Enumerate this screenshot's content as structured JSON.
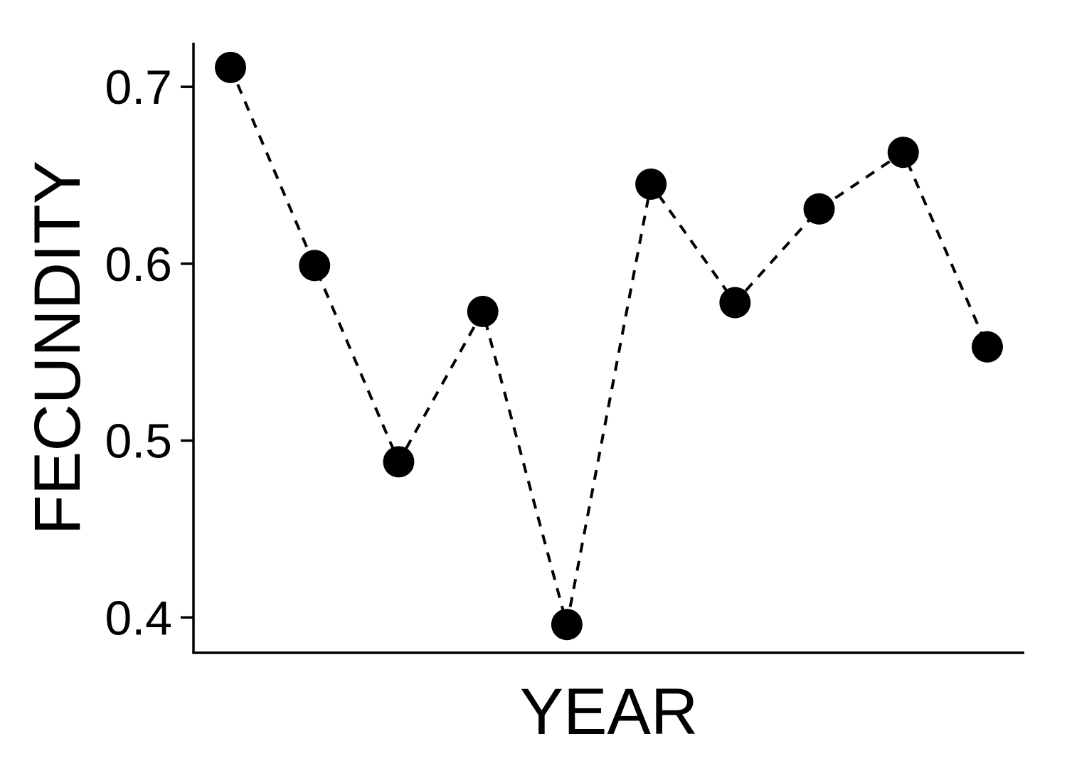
{
  "chart_data": {
    "type": "line",
    "title": "",
    "xlabel": "YEAR",
    "ylabel": "FECUNDITY",
    "ylim": [
      0.38,
      0.725
    ],
    "yticks": [
      "0.4",
      "0.5",
      "0.6",
      "0.7"
    ],
    "ytick_values": [
      0.4,
      0.5,
      0.6,
      0.7
    ],
    "x": [
      1,
      2,
      3,
      4,
      5,
      6,
      7,
      8,
      9,
      10
    ],
    "xlim": [
      0.56,
      10.44
    ],
    "grid": false,
    "legend": "none",
    "line_style": "dashed",
    "marker": "filled-circle",
    "color": "#000000",
    "series": [
      {
        "values": [
          0.711,
          0.599,
          0.488,
          0.573,
          0.396,
          0.645,
          0.578,
          0.631,
          0.663,
          0.553
        ]
      }
    ]
  }
}
